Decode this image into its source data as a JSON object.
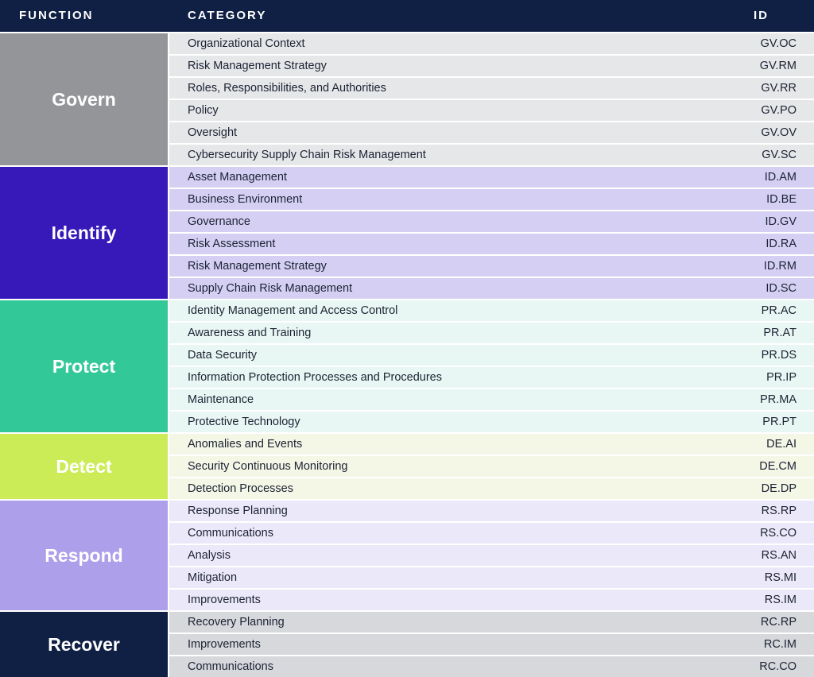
{
  "header": {
    "function": "FUNCTION",
    "category": "CATEGORY",
    "id": "ID"
  },
  "groups": [
    {
      "function": "Govern",
      "fn_bg": "#939598",
      "fn_color": "#ffffff",
      "row_bg": "#e6e7e9",
      "rows": [
        {
          "category": "Organizational Context",
          "id": "GV.OC"
        },
        {
          "category": "Risk Management Strategy",
          "id": "GV.RM"
        },
        {
          "category": "Roles, Responsibilities, and Authorities",
          "id": "GV.RR"
        },
        {
          "category": "Policy",
          "id": "GV.PO"
        },
        {
          "category": "Oversight",
          "id": "GV.OV"
        },
        {
          "category": "Cybersecurity Supply Chain Risk Management",
          "id": "GV.SC"
        }
      ]
    },
    {
      "function": "Identify",
      "fn_bg": "#3619b8",
      "fn_color": "#ffffff",
      "row_bg": "#d5d0f3",
      "rows": [
        {
          "category": "Asset Management",
          "id": "ID.AM"
        },
        {
          "category": "Business Environment",
          "id": "ID.BE"
        },
        {
          "category": "Governance",
          "id": "ID.GV"
        },
        {
          "category": "Risk Assessment",
          "id": "ID.RA"
        },
        {
          "category": "Risk Management Strategy",
          "id": "ID.RM"
        },
        {
          "category": "Supply Chain Risk Management",
          "id": "ID.SC"
        }
      ]
    },
    {
      "function": "Protect",
      "fn_bg": "#32c897",
      "fn_color": "#ffffff",
      "row_bg": "#e8f7f4",
      "rows": [
        {
          "category": "Identity Management and Access Control",
          "id": "PR.AC"
        },
        {
          "category": "Awareness and Training",
          "id": "PR.AT"
        },
        {
          "category": "Data Security",
          "id": "PR.DS"
        },
        {
          "category": "Information Protection Processes and Procedures",
          "id": "PR.IP"
        },
        {
          "category": "Maintenance",
          "id": "PR.MA"
        },
        {
          "category": "Protective Technology",
          "id": "PR.PT"
        }
      ]
    },
    {
      "function": "Detect",
      "fn_bg": "#cbec57",
      "fn_color": "#ffffff",
      "row_bg": "#f4f6e6",
      "rows": [
        {
          "category": "Anomalies and Events",
          "id": "DE.AI"
        },
        {
          "category": "Security Continuous Monitoring",
          "id": "DE.CM"
        },
        {
          "category": "Detection Processes",
          "id": "DE.DP"
        }
      ]
    },
    {
      "function": "Respond",
      "fn_bg": "#ad9fe9",
      "fn_color": "#ffffff",
      "row_bg": "#ebe8f9",
      "rows": [
        {
          "category": "Response Planning",
          "id": "RS.RP"
        },
        {
          "category": "Communications",
          "id": "RS.CO"
        },
        {
          "category": "Analysis",
          "id": "RS.AN"
        },
        {
          "category": "Mitigation",
          "id": "RS.MI"
        },
        {
          "category": "Improvements",
          "id": "RS.IM"
        }
      ]
    },
    {
      "function": "Recover",
      "fn_bg": "#0f2044",
      "fn_color": "#ffffff",
      "row_bg": "#d6d8dc",
      "rows": [
        {
          "category": "Recovery Planning",
          "id": "RC.RP"
        },
        {
          "category": "Improvements",
          "id": "RC.IM"
        },
        {
          "category": "Communications",
          "id": "RC.CO"
        }
      ]
    }
  ]
}
